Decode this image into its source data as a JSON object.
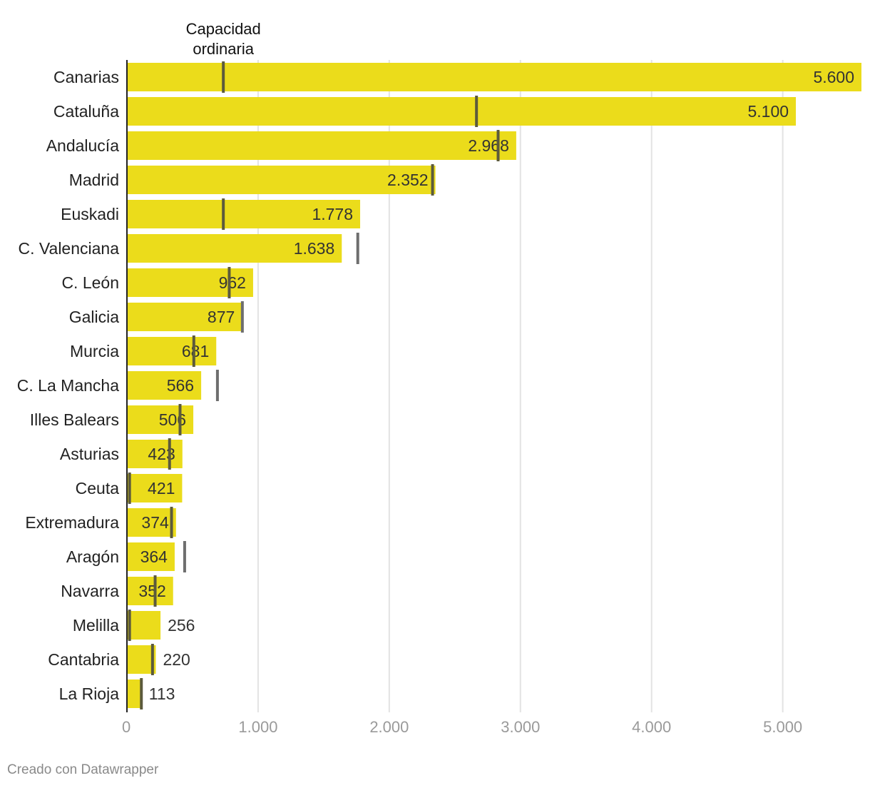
{
  "chart_data": {
    "type": "bar",
    "orientation": "horizontal",
    "marker_label": [
      "Capacidad",
      "ordinaria"
    ],
    "categories": [
      "Canarias",
      "Cataluña",
      "Andalucía",
      "Madrid",
      "Euskadi",
      "C. Valenciana",
      "C. León",
      "Galicia",
      "Murcia",
      "C. La Mancha",
      "Illes Balears",
      "Asturias",
      "Ceuta",
      "Extremadura",
      "Aragón",
      "Navarra",
      "Melilla",
      "Cantabria",
      "La Rioja"
    ],
    "values": [
      5600,
      5100,
      2968,
      2352,
      1778,
      1638,
      962,
      877,
      681,
      566,
      506,
      423,
      421,
      374,
      364,
      352,
      256,
      220,
      113
    ],
    "value_labels": [
      "5.600",
      "5.100",
      "2.968",
      "2.352",
      "1.778",
      "1.638",
      "962",
      "877",
      "681",
      "566",
      "506",
      "423",
      "421",
      "374",
      "364",
      "352",
      "256",
      "220",
      "113"
    ],
    "capacidad_ordinaria": [
      735,
      2665,
      2830,
      2330,
      735,
      1760,
      780,
      880,
      510,
      690,
      405,
      325,
      20,
      340,
      440,
      215,
      20,
      195,
      110
    ],
    "xlim": [
      0,
      5600
    ],
    "x_ticks": [
      0,
      1000,
      2000,
      3000,
      4000,
      5000
    ],
    "x_tick_labels": [
      "0",
      "1.000",
      "2.000",
      "3.000",
      "4.000",
      "5.000"
    ],
    "grid": true,
    "colors": {
      "bar": "#ebdc1b",
      "marker": "#5c5a3c",
      "grid": "#e3e3e3"
    }
  },
  "footer": {
    "credit": "Creado con Datawrapper"
  }
}
